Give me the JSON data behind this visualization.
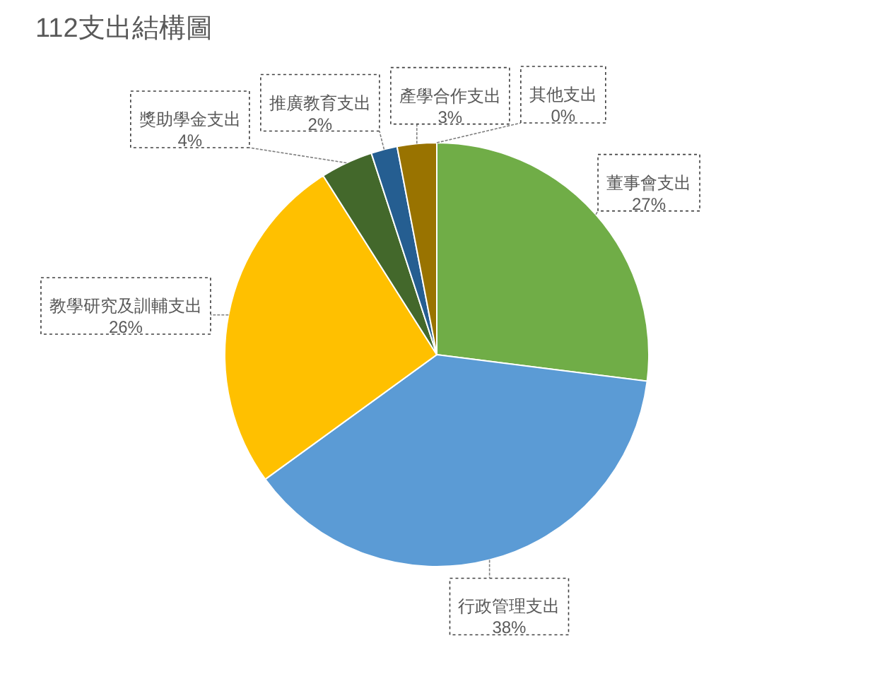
{
  "chart_data": {
    "type": "pie",
    "title": "112支出結構圖",
    "categories": [
      "董事會支出",
      "行政管理支出",
      "教學研究及訓輔支出",
      "獎助學金支出",
      "推廣教育支出",
      "產學合作支出",
      "其他支出"
    ],
    "values": [
      27,
      38,
      26,
      4,
      2,
      3,
      0
    ],
    "colors": [
      "#70ad47",
      "#5b9bd5",
      "#ffc000",
      "#43682b",
      "#255e91",
      "#997300",
      "#636363"
    ],
    "value_labels": [
      "27%",
      "38%",
      "26%",
      "4%",
      "2%",
      "3%",
      "0%"
    ]
  }
}
